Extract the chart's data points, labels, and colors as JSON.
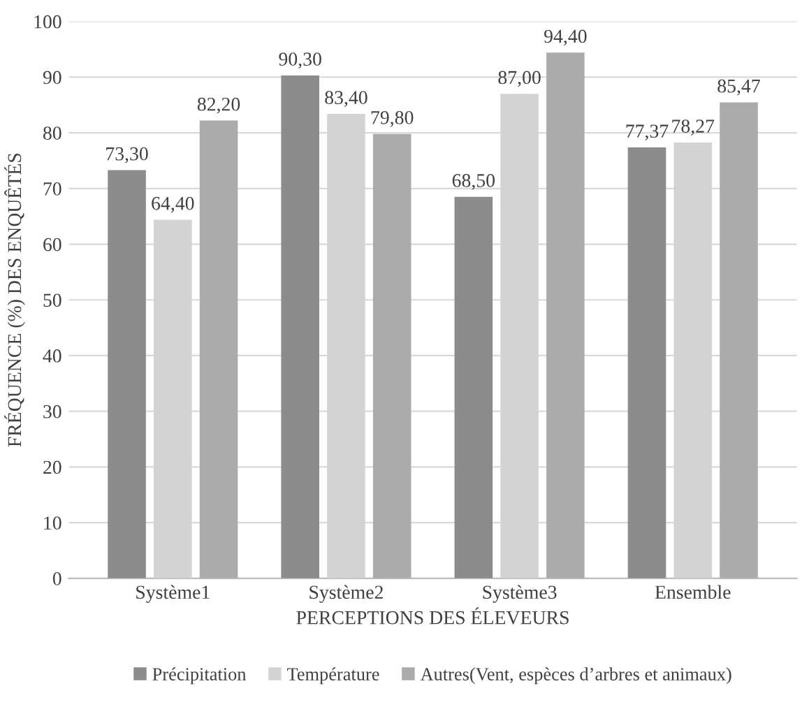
{
  "chart_data": {
    "type": "bar",
    "xlabel": "PERCEPTIONS DES ÉLEVEURS",
    "ylabel": "FRÉQUENCE (%) DES ENQUÊTÉS",
    "categories": [
      "Système1",
      "Système2",
      "Système3",
      "Ensemble"
    ],
    "series": [
      {
        "name": "Précipitation",
        "color": "#8c8c8c",
        "values": [
          73.3,
          90.3,
          68.5,
          77.37
        ],
        "value_labels": [
          "73,30",
          "90,30",
          "68,50",
          "77,37"
        ]
      },
      {
        "name": "Température",
        "color": "#d3d3d3",
        "values": [
          64.4,
          83.4,
          87.0,
          78.27
        ],
        "value_labels": [
          "64,40",
          "83,40",
          "87,00",
          "78,27"
        ]
      },
      {
        "name": "Autres(Vent, espèces d’arbres et animaux)",
        "color": "#ababab",
        "values": [
          82.2,
          79.8,
          94.4,
          85.47
        ],
        "value_labels": [
          "82,20",
          "79,80",
          "94,40",
          "85,47"
        ]
      }
    ],
    "ylim": [
      0,
      100
    ],
    "yticks": [
      0,
      10,
      20,
      30,
      40,
      50,
      60,
      70,
      80,
      90,
      100
    ],
    "grid": "y",
    "legend": "bottom"
  }
}
